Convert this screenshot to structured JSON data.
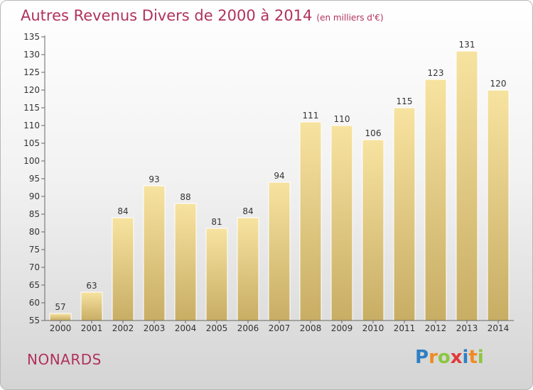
{
  "title": "Autres Revenus Divers de 2000 à 2014",
  "unit_note": "(en milliers d'€)",
  "commune": "NONARDS",
  "logo": "Proxiti",
  "colors": {
    "title": "#b0325c",
    "bar_top": "#f7e3a0",
    "bar_bottom": "#c8ad64",
    "logo_P": "#2f7fc4",
    "logo_r": "#f08a23",
    "logo_o": "#8cc63e",
    "logo_x": "#e03a3a",
    "logo_i": "#2f7fc4",
    "logo_t": "#f08a23",
    "logo_i2": "#8cc63e"
  },
  "chart_data": {
    "type": "bar",
    "title": "Autres Revenus Divers de 2000 à 2014",
    "categories": [
      "2000",
      "2001",
      "2002",
      "2003",
      "2004",
      "2005",
      "2006",
      "2007",
      "2008",
      "2009",
      "2010",
      "2011",
      "2012",
      "2013",
      "2014"
    ],
    "values": [
      57,
      63,
      84,
      93,
      88,
      81,
      84,
      94,
      111,
      110,
      106,
      115,
      123,
      131,
      120
    ],
    "ylim": [
      55,
      135
    ],
    "yticks": [
      55,
      60,
      65,
      70,
      75,
      80,
      85,
      90,
      95,
      100,
      105,
      110,
      115,
      120,
      125,
      130,
      135
    ],
    "grid": false,
    "xlabel": "",
    "ylabel": ""
  }
}
